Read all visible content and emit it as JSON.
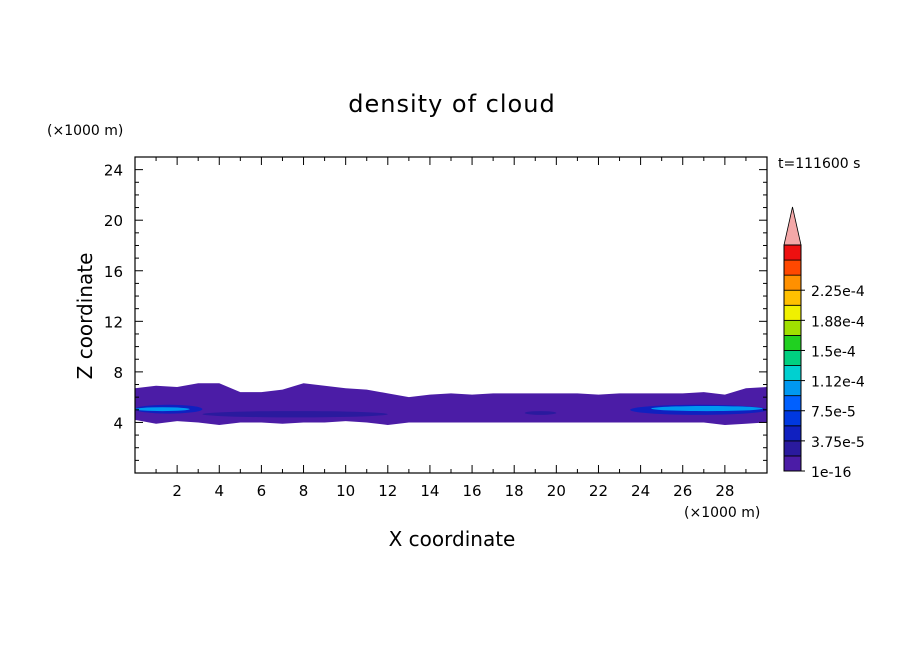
{
  "chart_data": {
    "type": "heatmap",
    "title": "density of cloud",
    "xlabel": "X coordinate",
    "ylabel": "Z coordinate",
    "x_unit": "(×1000 m)",
    "y_unit": "(×1000 m)",
    "time_label": "t=111600 s",
    "xlim": [
      0,
      30
    ],
    "ylim": [
      0,
      25
    ],
    "x_ticks": [
      2,
      4,
      6,
      8,
      10,
      12,
      14,
      16,
      18,
      20,
      22,
      24,
      26,
      28
    ],
    "x_tick_labels": [
      "2",
      "4",
      "6",
      "8",
      "10",
      "12",
      "14",
      "16",
      "18",
      "20",
      "22",
      "24",
      "26",
      "28"
    ],
    "y_ticks": [
      4,
      8,
      12,
      16,
      20,
      24
    ],
    "y_tick_labels": [
      "4",
      "8",
      "12",
      "16",
      "20",
      "24"
    ],
    "colorbar": {
      "levels": [
        1e-16,
        1.875e-05,
        3.75e-05,
        5.625e-05,
        7.5e-05,
        9.375e-05,
        0.0001125,
        0.00013125,
        0.00015,
        0.00016875,
        0.0001875,
        0.00020625,
        0.000225,
        0.00024375
      ],
      "tick_labels": [
        "1e-16",
        "3.75e-5",
        "7.5e-5",
        "1.12e-4",
        "1.5e-4",
        "1.88e-4",
        "2.25e-4"
      ],
      "colors": [
        "#4b1ca6",
        "#2a1a9e",
        "#1020c0",
        "#0038e0",
        "#0060ff",
        "#0098f0",
        "#00d0d0",
        "#00d080",
        "#20d020",
        "#a0e000",
        "#f0f000",
        "#ffc000",
        "#ff9000",
        "#ff4800",
        "#ee1010"
      ],
      "overflow_color": "#f4a8a8"
    },
    "cloud_layer": {
      "base_z": [
        4.2,
        3.9,
        4.1,
        4.0,
        3.8,
        4.0,
        4.0,
        3.9,
        4.0,
        4.0,
        4.1,
        4.0,
        3.8,
        4.0,
        4.0,
        4.0,
        4.0,
        4.0,
        4.0,
        4.0,
        4.0,
        4.0,
        4.0,
        4.0,
        4.0,
        4.0,
        4.0,
        4.0,
        3.8,
        3.9,
        4.0
      ],
      "top_z": [
        6.7,
        6.9,
        6.8,
        7.1,
        7.1,
        6.4,
        6.4,
        6.6,
        7.1,
        6.9,
        6.7,
        6.6,
        6.3,
        6.0,
        6.2,
        6.3,
        6.2,
        6.3,
        6.3,
        6.3,
        6.3,
        6.3,
        6.2,
        6.3,
        6.3,
        6.3,
        6.3,
        6.4,
        6.2,
        6.7,
        6.8
      ],
      "inner_band": [
        {
          "x0": 0,
          "x1": 3.2,
          "z0": 4.7,
          "z1": 5.4,
          "value": 3.75e-05
        },
        {
          "x0": 3.2,
          "x1": 12.0,
          "z0": 4.4,
          "z1": 4.9,
          "value": 1.875e-05
        },
        {
          "x0": 18.5,
          "x1": 20.0,
          "z0": 4.6,
          "z1": 4.9,
          "value": 1.875e-05
        },
        {
          "x0": 23.5,
          "x1": 30,
          "z0": 4.6,
          "z1": 5.4,
          "value": 3.75e-05
        }
      ],
      "peak_band": [
        {
          "x0": 0,
          "x1": 2.6,
          "z0": 4.9,
          "z1": 5.2,
          "value": 9.375e-05
        },
        {
          "x0": 24.5,
          "x1": 29.8,
          "z0": 4.9,
          "z1": 5.3,
          "value": 9.375e-05
        }
      ]
    }
  }
}
